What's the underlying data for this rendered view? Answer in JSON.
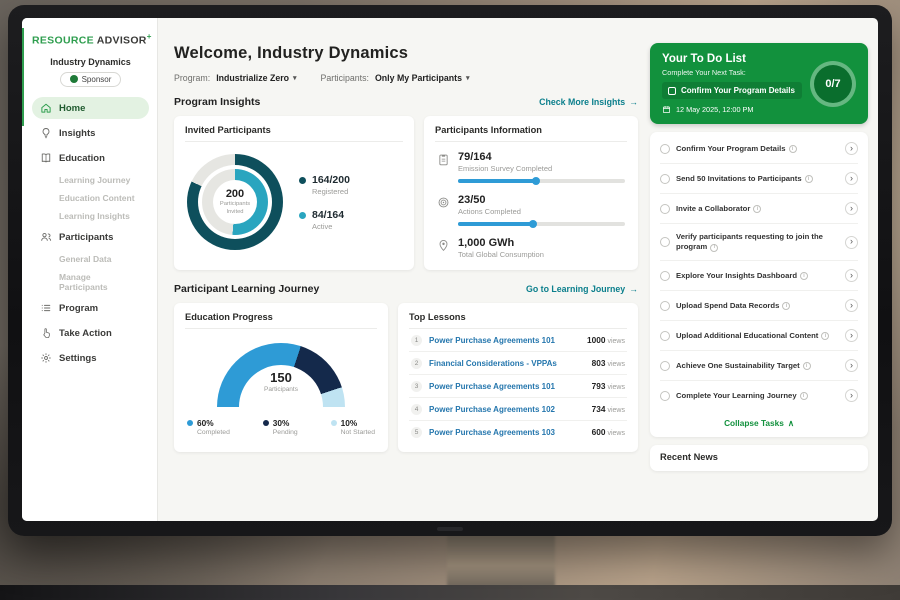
{
  "brand": {
    "primary": "RESOURCE",
    "secondary": "ADVISOR",
    "plus": "+"
  },
  "icons": {
    "chevron_down": "▾",
    "arrow_right": "→",
    "chevron_right": "›",
    "collapse_up": "∧",
    "info": "i"
  },
  "colors": {
    "brand_green": "#2f9e4f",
    "todo_green": "#12913d",
    "teal_link": "#0b7f8c",
    "donut_dark": "#0e4f5c",
    "donut_teal": "#2aa5bf",
    "bar_blue": "#2e9bd6",
    "gauge_blue": "#2e9bd6",
    "gauge_navy": "#14294b",
    "gauge_light": "#bfe3f2"
  },
  "sidebar": {
    "org_name": "Industry Dynamics",
    "sponsor_badge": "Sponsor",
    "items": [
      {
        "label": "Home"
      },
      {
        "label": "Insights"
      },
      {
        "label": "Education"
      },
      {
        "label": "Learning Journey"
      },
      {
        "label": "Education Content"
      },
      {
        "label": "Learning Insights"
      },
      {
        "label": "Participants"
      },
      {
        "label": "General Data"
      },
      {
        "label": "Manage Participants"
      },
      {
        "label": "Program"
      },
      {
        "label": "Take Action"
      },
      {
        "label": "Settings"
      }
    ]
  },
  "header": {
    "welcome": "Welcome, Industry Dynamics",
    "program_label": "Program:",
    "program_value": "Industrialize Zero",
    "participants_label": "Participants:",
    "participants_value": "Only My Participants"
  },
  "insights_section": {
    "title": "Program Insights",
    "link": "Check More Insights"
  },
  "invited_card": {
    "title": "Invited Participants",
    "center_value": "200",
    "center_label": "Participants Invited",
    "legend": [
      {
        "value": "164/200",
        "label": "Registered"
      },
      {
        "value": "84/164",
        "label": "Active"
      }
    ]
  },
  "info_card": {
    "title": "Participants Information",
    "stats": [
      {
        "value": "79/164",
        "label": "Emission Survey Completed"
      },
      {
        "value": "23/50",
        "label": "Actions Completed"
      },
      {
        "value": "1,000 GWh",
        "label": "Total Global Consumption"
      }
    ]
  },
  "journey_section": {
    "title": "Participant Learning Journey",
    "link": "Go to Learning Journey"
  },
  "education_card": {
    "title": "Education Progress",
    "center_value": "150",
    "center_label": "Participants",
    "legend": [
      {
        "value": "60%",
        "label": "Completed"
      },
      {
        "value": "30%",
        "label": "Pending"
      },
      {
        "value": "10%",
        "label": "Not Started"
      }
    ]
  },
  "lessons_card": {
    "title": "Top Lessons",
    "rows": [
      {
        "rank": "1",
        "name": "Power Purchase Agreements 101",
        "views_value": "1000",
        "views_label": "views"
      },
      {
        "rank": "2",
        "name": "Financial Considerations - VPPAs",
        "views_value": "803",
        "views_label": "views"
      },
      {
        "rank": "3",
        "name": "Power Purchase Agreements 101",
        "views_value": "793",
        "views_label": "views"
      },
      {
        "rank": "4",
        "name": "Power Purchase Agreements 102",
        "views_value": "734",
        "views_label": "views"
      },
      {
        "rank": "5",
        "name": "Power Purchase Agreements 103",
        "views_value": "600",
        "views_label": "views"
      }
    ]
  },
  "todo_card": {
    "title": "Your To Do List",
    "subtitle": "Complete Your Next Task:",
    "next_task": "Confirm Your Program Details",
    "due_date": "12 May 2025, 12:00 PM",
    "progress": "0/7"
  },
  "tasks_card": {
    "tasks": [
      {
        "label": "Confirm Your Program Details"
      },
      {
        "label": "Send 50 Invitations to Participants"
      },
      {
        "label": "Invite a Collaborator"
      },
      {
        "label": "Verify participants requesting to join the program"
      },
      {
        "label": "Explore Your Insights Dashboard"
      },
      {
        "label": "Upload Spend Data Records"
      },
      {
        "label": "Upload Additional Educational Content"
      },
      {
        "label": "Achieve One Sustainability Target"
      },
      {
        "label": "Complete Your Learning Journey"
      }
    ],
    "collapse_label": "Collapse Tasks"
  },
  "news_section": {
    "title": "Recent News"
  },
  "chart_data": [
    {
      "id": "invited_donut",
      "type": "donut",
      "title": "Invited Participants",
      "track_color": "#e6e6e2",
      "rings": [
        {
          "name": "Registered",
          "value": 164,
          "total": 200,
          "color": "#0e4f5c"
        },
        {
          "name": "Active",
          "value": 84,
          "total": 164,
          "color": "#2aa5bf"
        }
      ],
      "center": {
        "value": 200,
        "label": "Participants Invited"
      }
    },
    {
      "id": "education_gauge",
      "type": "gauge",
      "title": "Education Progress",
      "center": {
        "value": 150,
        "label": "Participants"
      },
      "segments": [
        {
          "name": "Completed",
          "pct": 60,
          "color": "#2e9bd6"
        },
        {
          "name": "Pending",
          "pct": 30,
          "color": "#14294b"
        },
        {
          "name": "Not Started",
          "pct": 10,
          "color": "#bfe3f2"
        }
      ]
    },
    {
      "id": "participant_progress",
      "type": "bar",
      "title": "Participants Information",
      "bars": [
        {
          "name": "Emission Survey Completed",
          "value": 79,
          "total": 164,
          "color": "#2e9bd6"
        },
        {
          "name": "Actions Completed",
          "value": 23,
          "total": 50,
          "color": "#2e9bd6"
        }
      ]
    },
    {
      "id": "todo_ring",
      "type": "ring",
      "title": "To Do Progress",
      "value": 0,
      "total": 7
    }
  ]
}
